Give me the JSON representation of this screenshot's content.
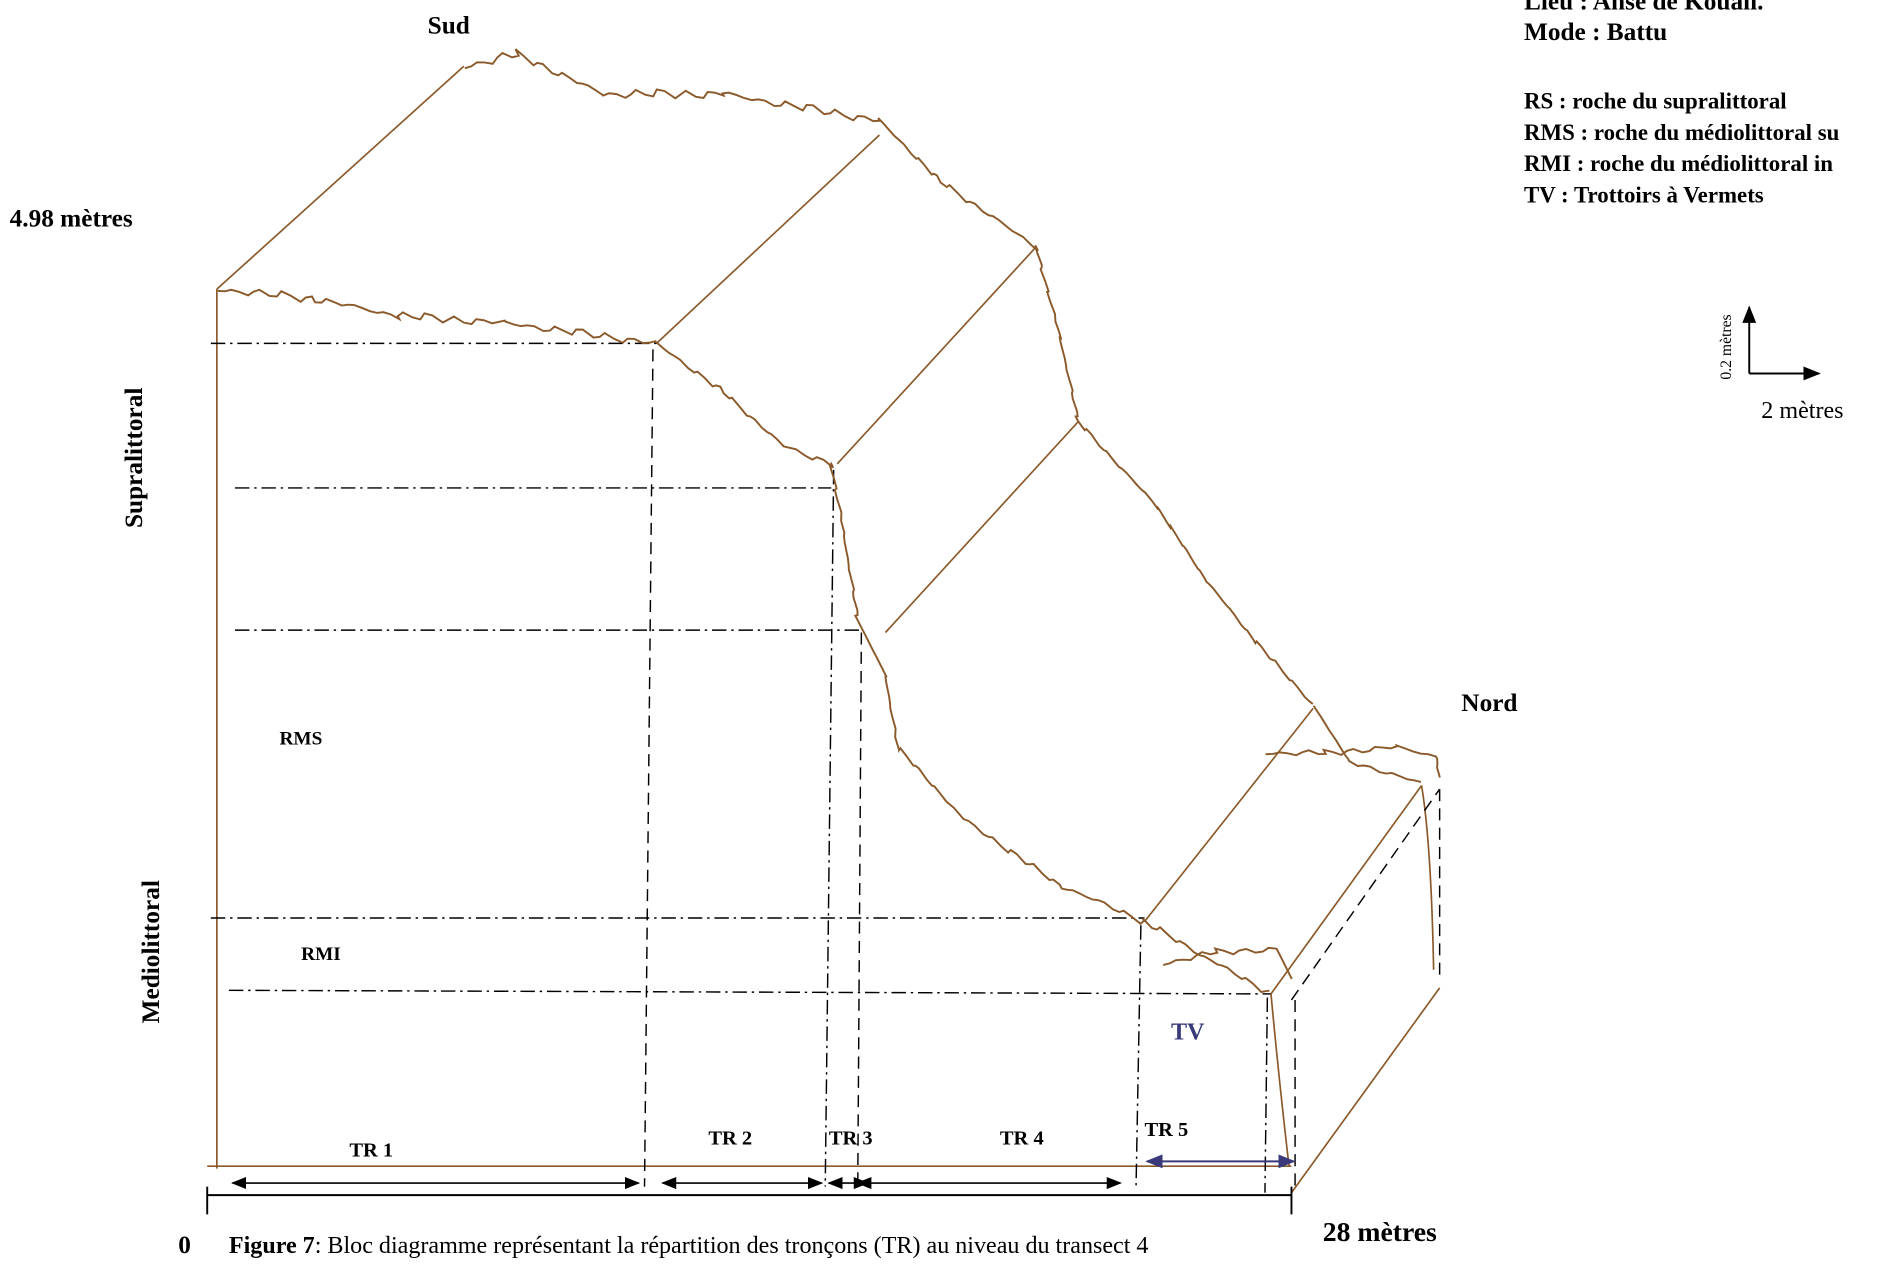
{
  "header": {
    "site": "Lieu : Anse de Kouali.",
    "mode": "Mode : Battu"
  },
  "legend": [
    "RS : roche du supralittoral",
    "RMS : roche du médiolittoral su",
    "RMI : roche du médiolittoral in",
    "TV : Trottoirs à Vermets"
  ],
  "orientation": {
    "south": "Sud",
    "north": "Nord"
  },
  "axes": {
    "height": "4.98 mètres",
    "origin": "0",
    "length": "28 mètres"
  },
  "zones": {
    "supralittoral": "Supralittoral",
    "mediolittoral": "Mediolittoral"
  },
  "areas": {
    "rms": "RMS",
    "rmi": "RMI",
    "tv": "TV"
  },
  "segments": [
    "TR 1",
    "TR 2",
    "TR 3",
    "TR 4",
    "TR 5"
  ],
  "scale": {
    "vertical": "0.2 mètres",
    "horizontal": "2 mètres"
  },
  "caption": {
    "label": "Figure 7",
    "text": ": Bloc diagramme représentant la répartition des tronçons (TR)   au niveau du transect 4"
  }
}
